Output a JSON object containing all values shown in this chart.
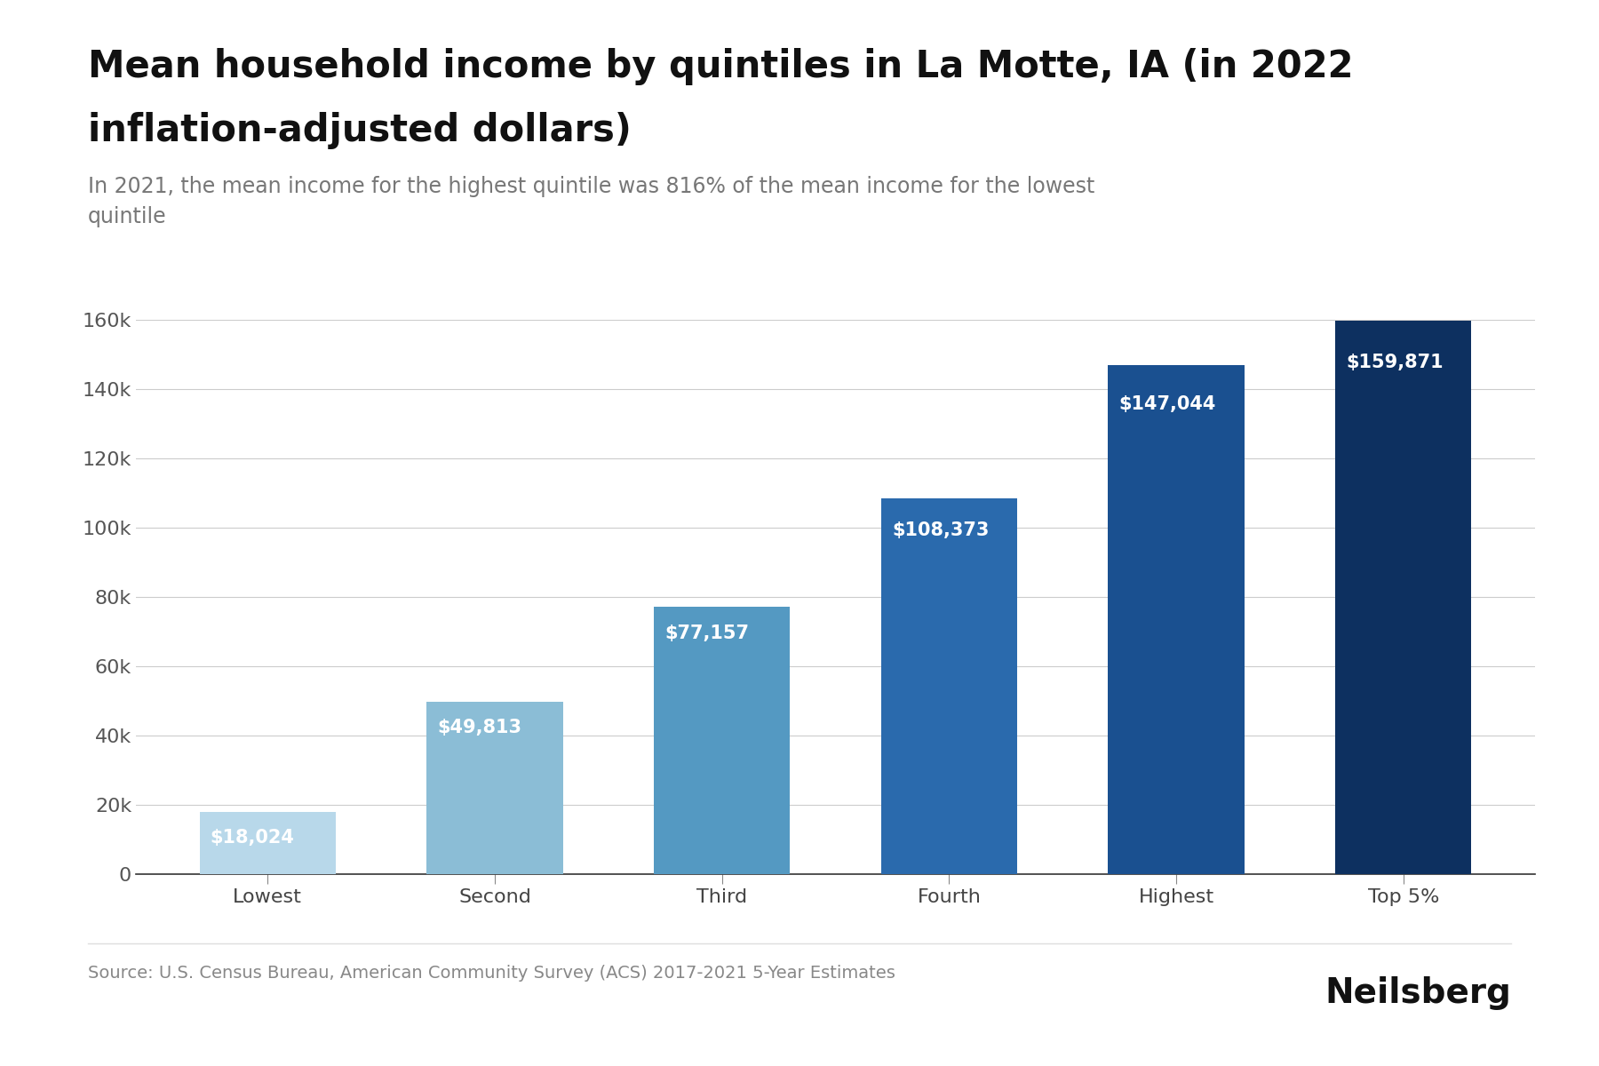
{
  "categories": [
    "Lowest",
    "Second",
    "Third",
    "Fourth",
    "Highest",
    "Top 5%"
  ],
  "values": [
    18024,
    49813,
    77157,
    108373,
    147044,
    159871
  ],
  "bar_colors": [
    "#b8d8ea",
    "#8bbdd6",
    "#5499c2",
    "#2a6aad",
    "#1a5090",
    "#0d3060"
  ],
  "title_line1": "Mean household income by quintiles in La Motte, IA (in 2022",
  "title_line2": "inflation-adjusted dollars)",
  "subtitle": "In 2021, the mean income for the highest quintile was 816% of the mean income for the lowest\nquintile",
  "source": "Source: U.S. Census Bureau, American Community Survey (ACS) 2017-2021 5-Year Estimates",
  "brand": "Neilsberg",
  "ylim": [
    0,
    160000
  ],
  "ytick_step": 20000,
  "title_fontsize": 30,
  "subtitle_fontsize": 17,
  "tick_fontsize": 16,
  "source_fontsize": 14,
  "brand_fontsize": 28,
  "background_color": "#ffffff",
  "bar_label_color": "#ffffff",
  "bar_label_fontsize": 15
}
